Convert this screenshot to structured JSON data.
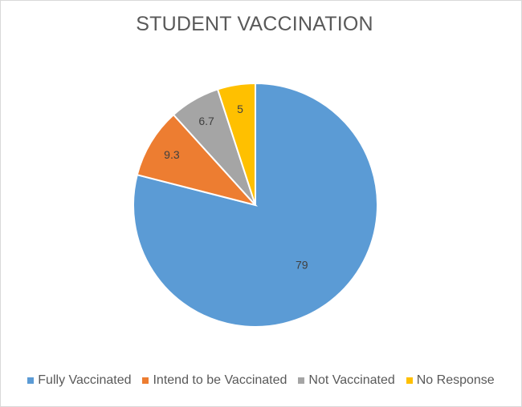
{
  "chart_data": {
    "type": "pie",
    "title": "STUDENT VACCINATION",
    "legend_position": "bottom",
    "slices": [
      {
        "label": "Fully Vaccinated",
        "value": 79,
        "data_label": "79",
        "color": "#5b9bd5"
      },
      {
        "label": "Intend to be Vaccinated",
        "value": 9.3,
        "data_label": "9.3",
        "color": "#ed7d31"
      },
      {
        "label": "Not Vaccinated",
        "value": 6.7,
        "data_label": "6.7",
        "color": "#a5a5a5"
      },
      {
        "label": "No Response",
        "value": 5,
        "data_label": "5",
        "color": "#ffc000"
      }
    ]
  }
}
